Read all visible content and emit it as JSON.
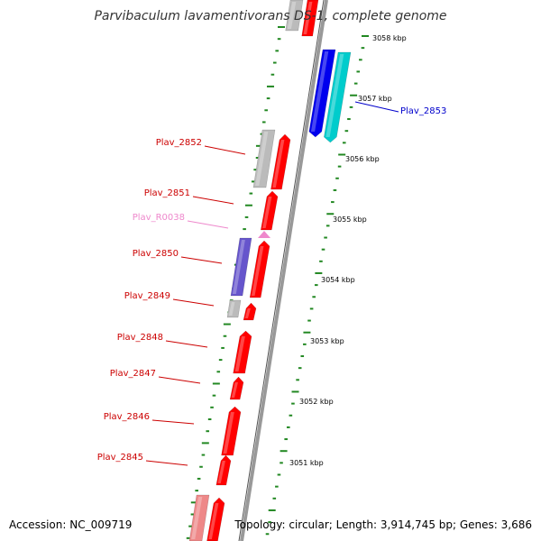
{
  "title": "Parvibaculum lavamentivorans DS-1, complete genome",
  "accession": "Accession: NC_009719",
  "topology": "Topology: circular; Length: 3,914,745 bp; Genes: 3,686",
  "colors": {
    "forward_cds": "#ff0000",
    "reverse_cds_blue": "#0000ee",
    "reverse_cds_cyan": "#00cccc",
    "purple_cds": "#6655cc",
    "pseudo_gray": "#bbbbbb",
    "rna_pink": "#ee88cc",
    "tick_green": "#228822",
    "label_red": "#cc0000",
    "label_blue": "#0000cc",
    "label_pink": "#ee88cc"
  },
  "scale_labels": [
    "3058 kbp",
    "3057 kbp",
    "3056 kbp",
    "3055 kbp",
    "3054 kbp",
    "3053 kbp",
    "3052 kbp",
    "3051 kbp"
  ],
  "gene_labels": [
    {
      "name": "Plav_2853",
      "color": "blue"
    },
    {
      "name": "Plav_2852",
      "color": "red"
    },
    {
      "name": "Plav_2851",
      "color": "red"
    },
    {
      "name": "Plav_R0038",
      "color": "pink"
    },
    {
      "name": "Plav_2850",
      "color": "red"
    },
    {
      "name": "Plav_2849",
      "color": "red"
    },
    {
      "name": "Plav_2848",
      "color": "red"
    },
    {
      "name": "Plav_2847",
      "color": "red"
    },
    {
      "name": "Plav_2846",
      "color": "red"
    },
    {
      "name": "Plav_2845",
      "color": "red"
    }
  ]
}
